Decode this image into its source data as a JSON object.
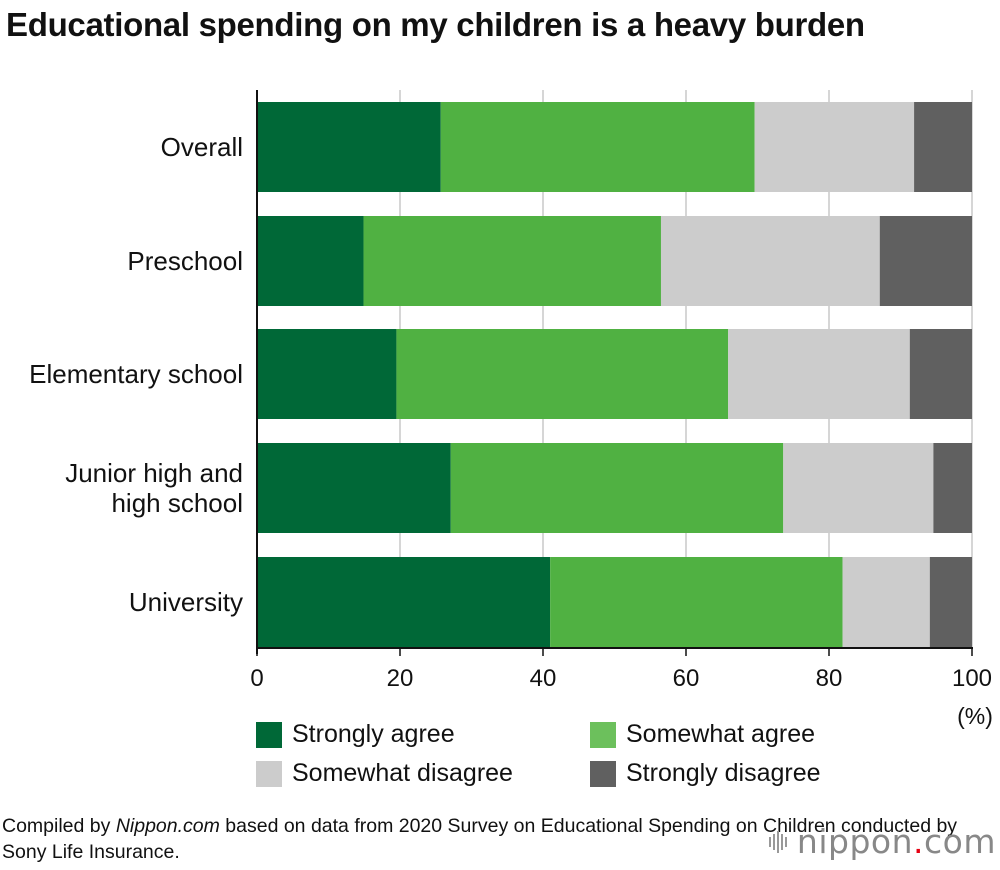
{
  "title": "Educational spending on my children is a heavy burden",
  "chart_data": {
    "type": "bar",
    "orientation": "horizontal",
    "stacked": true,
    "categories": [
      "Overall",
      "Preschool",
      "Elementary school",
      "Junior high and\nhigh school",
      "University"
    ],
    "series": [
      {
        "name": "Strongly agree",
        "color": "#006837",
        "values": [
          25.7,
          14.9,
          19.5,
          27.1,
          41.0
        ]
      },
      {
        "name": "Somewhat agree",
        "color": "#50b142",
        "values": [
          43.9,
          41.6,
          46.4,
          46.5,
          40.9
        ]
      },
      {
        "name": "Somewhat disagree",
        "color": "#cccccc",
        "values": [
          22.3,
          30.6,
          25.4,
          21.0,
          12.2
        ]
      },
      {
        "name": "Strongly disagree",
        "color": "#606060",
        "values": [
          8.1,
          12.9,
          8.7,
          5.4,
          5.9
        ]
      }
    ],
    "xlim": [
      0,
      100
    ],
    "xticks": [
      0,
      20,
      40,
      60,
      80,
      100
    ],
    "xlabel": "(%)",
    "grid": true,
    "legend": "bottom"
  },
  "legend_swatch_colors": {
    "somewhat_agree": "#6cc05c"
  },
  "source": {
    "prefix": "Compiled by ",
    "site": "Nippon.com",
    "text": " based on data from 2020 Survey on Educational Spending on Children conducted by Sony Life Insurance."
  },
  "logo": {
    "name": "nippon",
    "dot": ".",
    "suffix": "com"
  }
}
